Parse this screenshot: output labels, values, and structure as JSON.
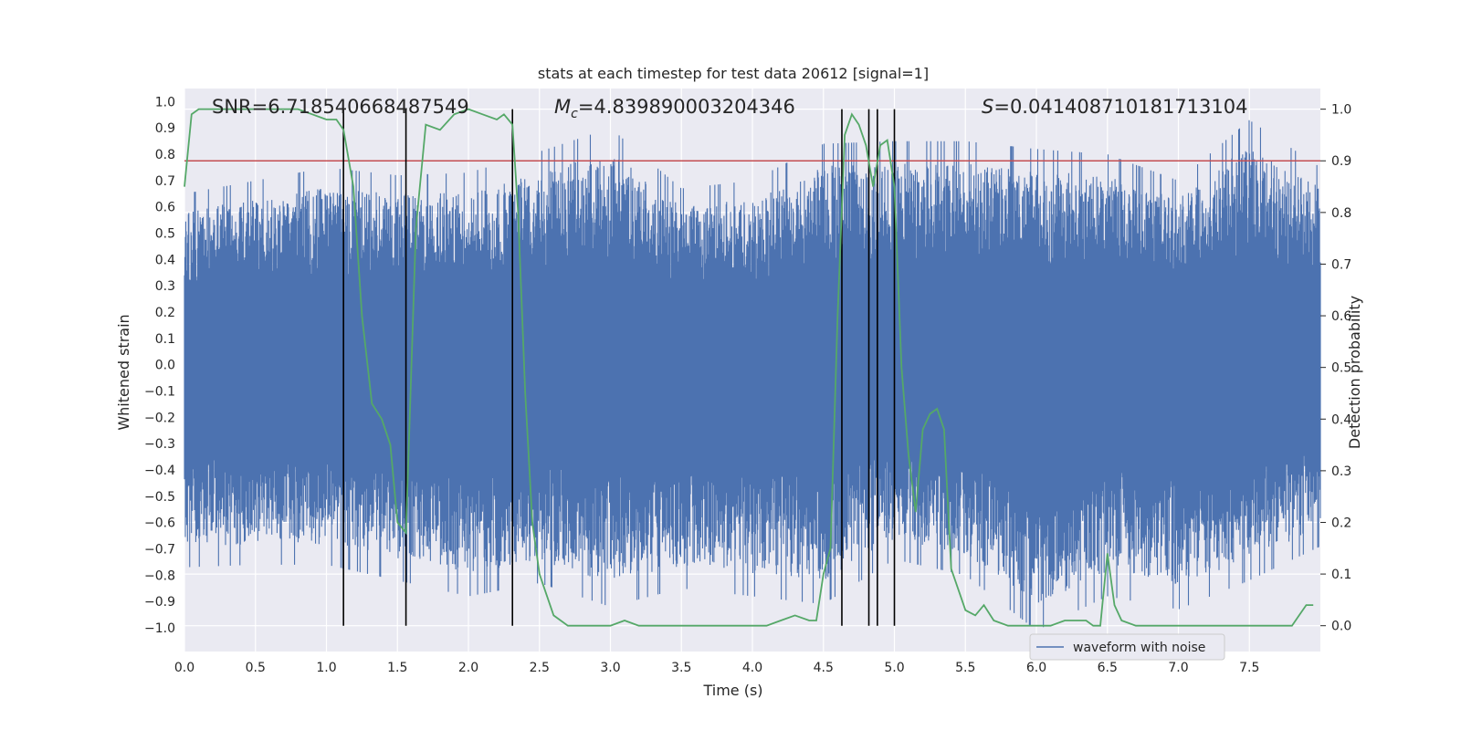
{
  "chart_data": {
    "type": "line",
    "title": "stats at each timestep for test data 20612 [signal=1]",
    "xlabel": "Time (s)",
    "ylabel_left": "Whitened strain",
    "ylabel_right": "Detection probability",
    "xlim": [
      0.0,
      8.0
    ],
    "ylim_left": [
      -1.09,
      1.05
    ],
    "ylim_right": [
      -0.05,
      1.04
    ],
    "x_ticks": [
      "0.0",
      "0.5",
      "1.0",
      "1.5",
      "2.0",
      "2.5",
      "3.0",
      "3.5",
      "4.0",
      "4.5",
      "5.0",
      "5.5",
      "6.0",
      "6.5",
      "7.0",
      "7.5"
    ],
    "y_left_ticks": [
      "1.0",
      "0.9",
      "0.8",
      "0.7",
      "0.6",
      "0.5",
      "0.4",
      "0.3",
      "0.2",
      "0.1",
      "0.0",
      "−0.1",
      "−0.2",
      "−0.3",
      "−0.4",
      "−0.5",
      "−0.6",
      "−0.7",
      "−0.8",
      "−0.9",
      "−1.0"
    ],
    "y_right_ticks": [
      "1.0",
      "0.9",
      "0.8",
      "0.7",
      "0.6",
      "0.5",
      "0.4",
      "0.3",
      "0.2",
      "0.1",
      "0.0"
    ],
    "annotations": {
      "snr": "SNR=6.718540668487549",
      "mc_symbol": "M",
      "mc_sub": "c",
      "mc_value": "=4.839890003204346",
      "s_symbol": "S",
      "s_value": "=0.041408710181713104"
    },
    "legend": {
      "label": "waveform with noise",
      "placement": "lower-right"
    },
    "grid": true,
    "threshold": {
      "axis": "right",
      "value": 0.9,
      "color": "#c44e52"
    },
    "event_lines": [
      1.12,
      1.56,
      2.31,
      4.63,
      4.82,
      4.88,
      5.0
    ],
    "series": [
      {
        "name": "waveform with noise",
        "axis": "left",
        "color": "#4c72b0",
        "kind": "noise-strain",
        "envelope": {
          "x": [
            0.0,
            0.5,
            1.0,
            1.5,
            2.0,
            2.5,
            3.0,
            3.5,
            4.0,
            4.5,
            5.0,
            5.5,
            6.0,
            6.5,
            7.0,
            7.5,
            8.0
          ],
          "upper": [
            0.65,
            0.7,
            0.75,
            0.72,
            0.73,
            0.81,
            0.9,
            0.67,
            0.7,
            0.84,
            0.85,
            0.85,
            0.82,
            0.8,
            0.7,
            0.93,
            0.75
          ],
          "lower": [
            -0.77,
            -0.76,
            -0.76,
            -0.82,
            -0.88,
            -0.83,
            -0.92,
            -0.85,
            -0.88,
            -0.91,
            -0.74,
            -0.8,
            -1.01,
            -0.88,
            -0.93,
            -0.82,
            -0.69
          ]
        }
      },
      {
        "name": "Detection probability",
        "axis": "right",
        "color": "#55a868",
        "x": [
          0.0,
          0.05,
          0.1,
          0.2,
          0.4,
          0.6,
          0.8,
          0.9,
          1.0,
          1.07,
          1.12,
          1.19,
          1.25,
          1.32,
          1.39,
          1.45,
          1.5,
          1.56,
          1.63,
          1.7,
          1.8,
          1.9,
          2.0,
          2.1,
          2.2,
          2.25,
          2.31,
          2.35,
          2.4,
          2.45,
          2.5,
          2.55,
          2.6,
          2.7,
          2.8,
          2.9,
          3.0,
          3.1,
          3.2,
          3.3,
          3.4,
          3.5,
          3.7,
          3.9,
          4.1,
          4.2,
          4.3,
          4.4,
          4.45,
          4.5,
          4.55,
          4.6,
          4.65,
          4.7,
          4.75,
          4.8,
          4.85,
          4.9,
          4.95,
          5.0,
          5.05,
          5.1,
          5.15,
          5.2,
          5.25,
          5.3,
          5.35,
          5.4,
          5.5,
          5.57,
          5.63,
          5.7,
          5.8,
          5.9,
          6.0,
          6.1,
          6.2,
          6.3,
          6.35,
          6.4,
          6.45,
          6.5,
          6.55,
          6.6,
          6.7,
          6.9,
          7.1,
          7.3,
          7.5,
          7.7,
          7.8,
          7.85,
          7.9,
          7.95
        ],
        "y": [
          0.85,
          0.99,
          1.0,
          1.0,
          1.0,
          1.0,
          1.0,
          0.99,
          0.98,
          0.98,
          0.96,
          0.85,
          0.6,
          0.43,
          0.4,
          0.35,
          0.2,
          0.18,
          0.77,
          0.97,
          0.96,
          0.99,
          1.0,
          0.99,
          0.98,
          0.99,
          0.97,
          0.8,
          0.45,
          0.2,
          0.1,
          0.06,
          0.02,
          0.0,
          0.0,
          0.0,
          0.0,
          0.01,
          0.0,
          0.0,
          0.0,
          0.0,
          0.0,
          0.0,
          0.0,
          0.01,
          0.02,
          0.01,
          0.01,
          0.1,
          0.15,
          0.6,
          0.95,
          0.99,
          0.97,
          0.93,
          0.85,
          0.93,
          0.94,
          0.85,
          0.5,
          0.33,
          0.22,
          0.38,
          0.41,
          0.42,
          0.38,
          0.11,
          0.03,
          0.02,
          0.04,
          0.01,
          0.0,
          0.0,
          0.0,
          0.0,
          0.01,
          0.01,
          0.01,
          0.0,
          0.0,
          0.14,
          0.04,
          0.01,
          0.0,
          0.0,
          0.0,
          0.0,
          0.0,
          0.0,
          0.0,
          0.02,
          0.04,
          0.04
        ]
      }
    ]
  }
}
